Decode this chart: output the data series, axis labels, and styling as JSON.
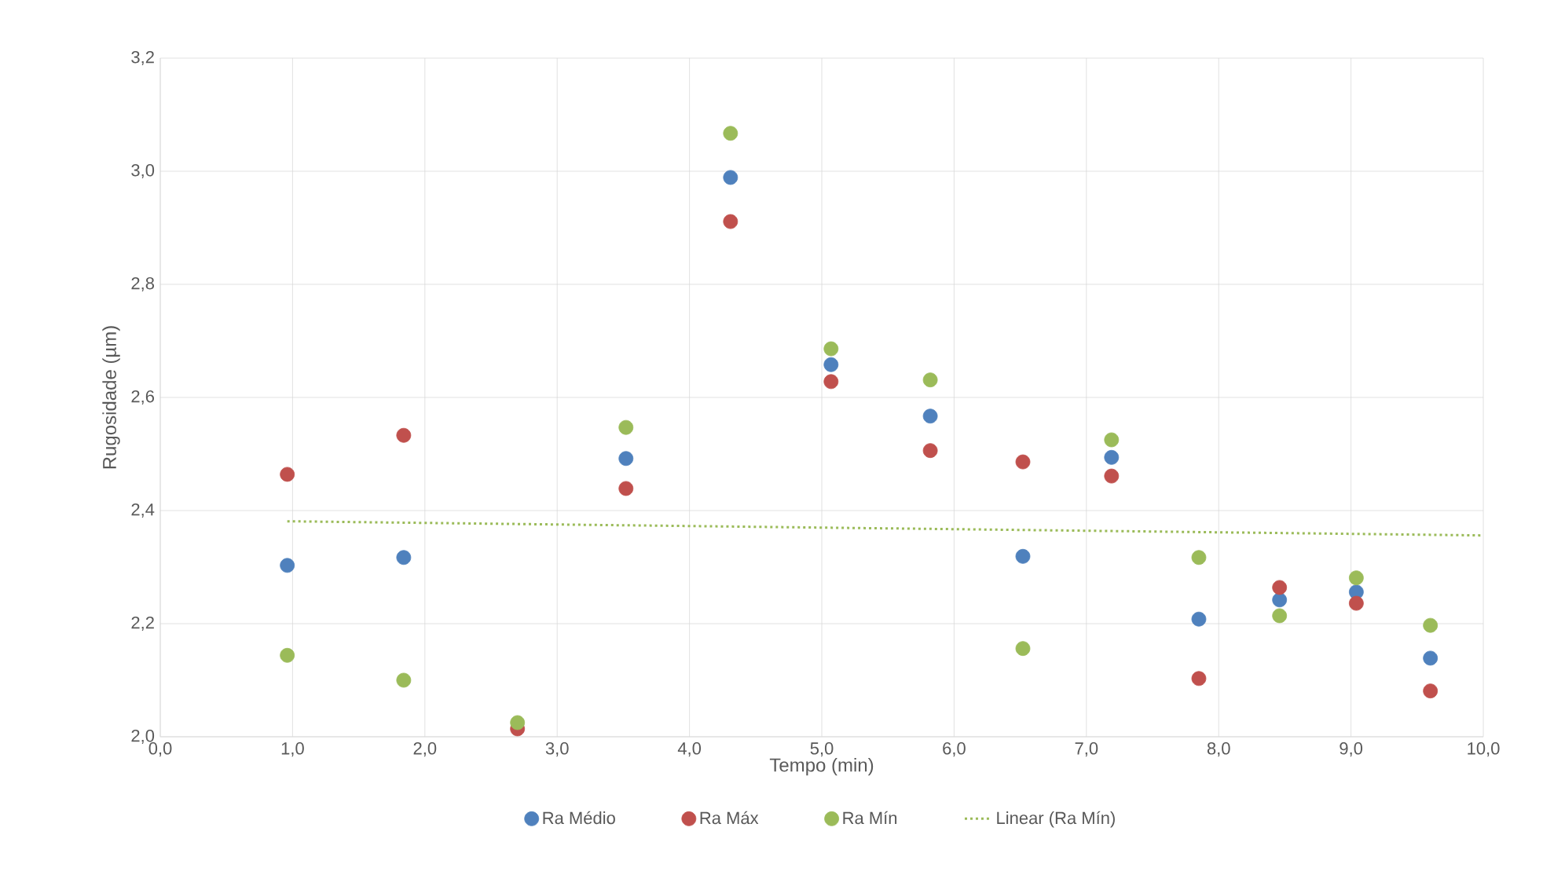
{
  "chart_data": {
    "type": "scatter",
    "xlabel": "Tempo (min)",
    "ylabel": "Rugosidade (µm)",
    "xlim": [
      0,
      10
    ],
    "ylim": [
      2.0,
      3.2
    ],
    "xticks": [
      {
        "value": 0,
        "label": "0,0"
      },
      {
        "value": 1,
        "label": "1,0"
      },
      {
        "value": 2,
        "label": "2,0"
      },
      {
        "value": 3,
        "label": "3,0"
      },
      {
        "value": 4,
        "label": "4,0"
      },
      {
        "value": 5,
        "label": "5,0"
      },
      {
        "value": 6,
        "label": "6,0"
      },
      {
        "value": 7,
        "label": "7,0"
      },
      {
        "value": 8,
        "label": "8,0"
      },
      {
        "value": 9,
        "label": "9,0"
      },
      {
        "value": 10,
        "label": "10,0"
      }
    ],
    "yticks": [
      {
        "value": 2.0,
        "label": "2,0"
      },
      {
        "value": 2.2,
        "label": "2,2"
      },
      {
        "value": 2.4,
        "label": "2,4"
      },
      {
        "value": 2.6,
        "label": "2,6"
      },
      {
        "value": 2.8,
        "label": "2,8"
      },
      {
        "value": 3.0,
        "label": "3,0"
      },
      {
        "value": 3.2,
        "label": "3,2"
      }
    ],
    "grid": true,
    "legend": "bottom",
    "marker": "circle",
    "x": [
      0.96,
      1.84,
      2.7,
      3.52,
      4.31,
      5.07,
      5.82,
      6.52,
      7.19,
      7.85,
      8.46,
      9.04,
      9.6
    ],
    "series": [
      {
        "name": "Ra Médio",
        "color": "#4f81bd",
        "values": [
          2.303,
          2.317,
          null,
          2.492,
          2.989,
          2.658,
          2.567,
          2.319,
          2.494,
          2.208,
          2.242,
          2.256,
          2.139
        ]
      },
      {
        "name": "Ra Máx",
        "color": "#c0504d",
        "values": [
          2.464,
          2.533,
          2.014,
          2.439,
          2.911,
          2.628,
          2.506,
          2.486,
          2.461,
          2.103,
          2.264,
          2.236,
          2.081
        ]
      },
      {
        "name": "Ra Mín",
        "color": "#9bbb59",
        "values": [
          2.144,
          2.1,
          2.025,
          2.547,
          3.067,
          2.686,
          2.631,
          2.156,
          2.525,
          2.317,
          2.214,
          2.281,
          2.197
        ]
      },
      {
        "name": "Linear (Ra Mín)",
        "type": "line",
        "color": "#9bbb59",
        "line_style": "dotted",
        "marker": "none",
        "x": [
          0.96,
          10.0
        ],
        "values": [
          2.381,
          2.356
        ]
      }
    ]
  }
}
